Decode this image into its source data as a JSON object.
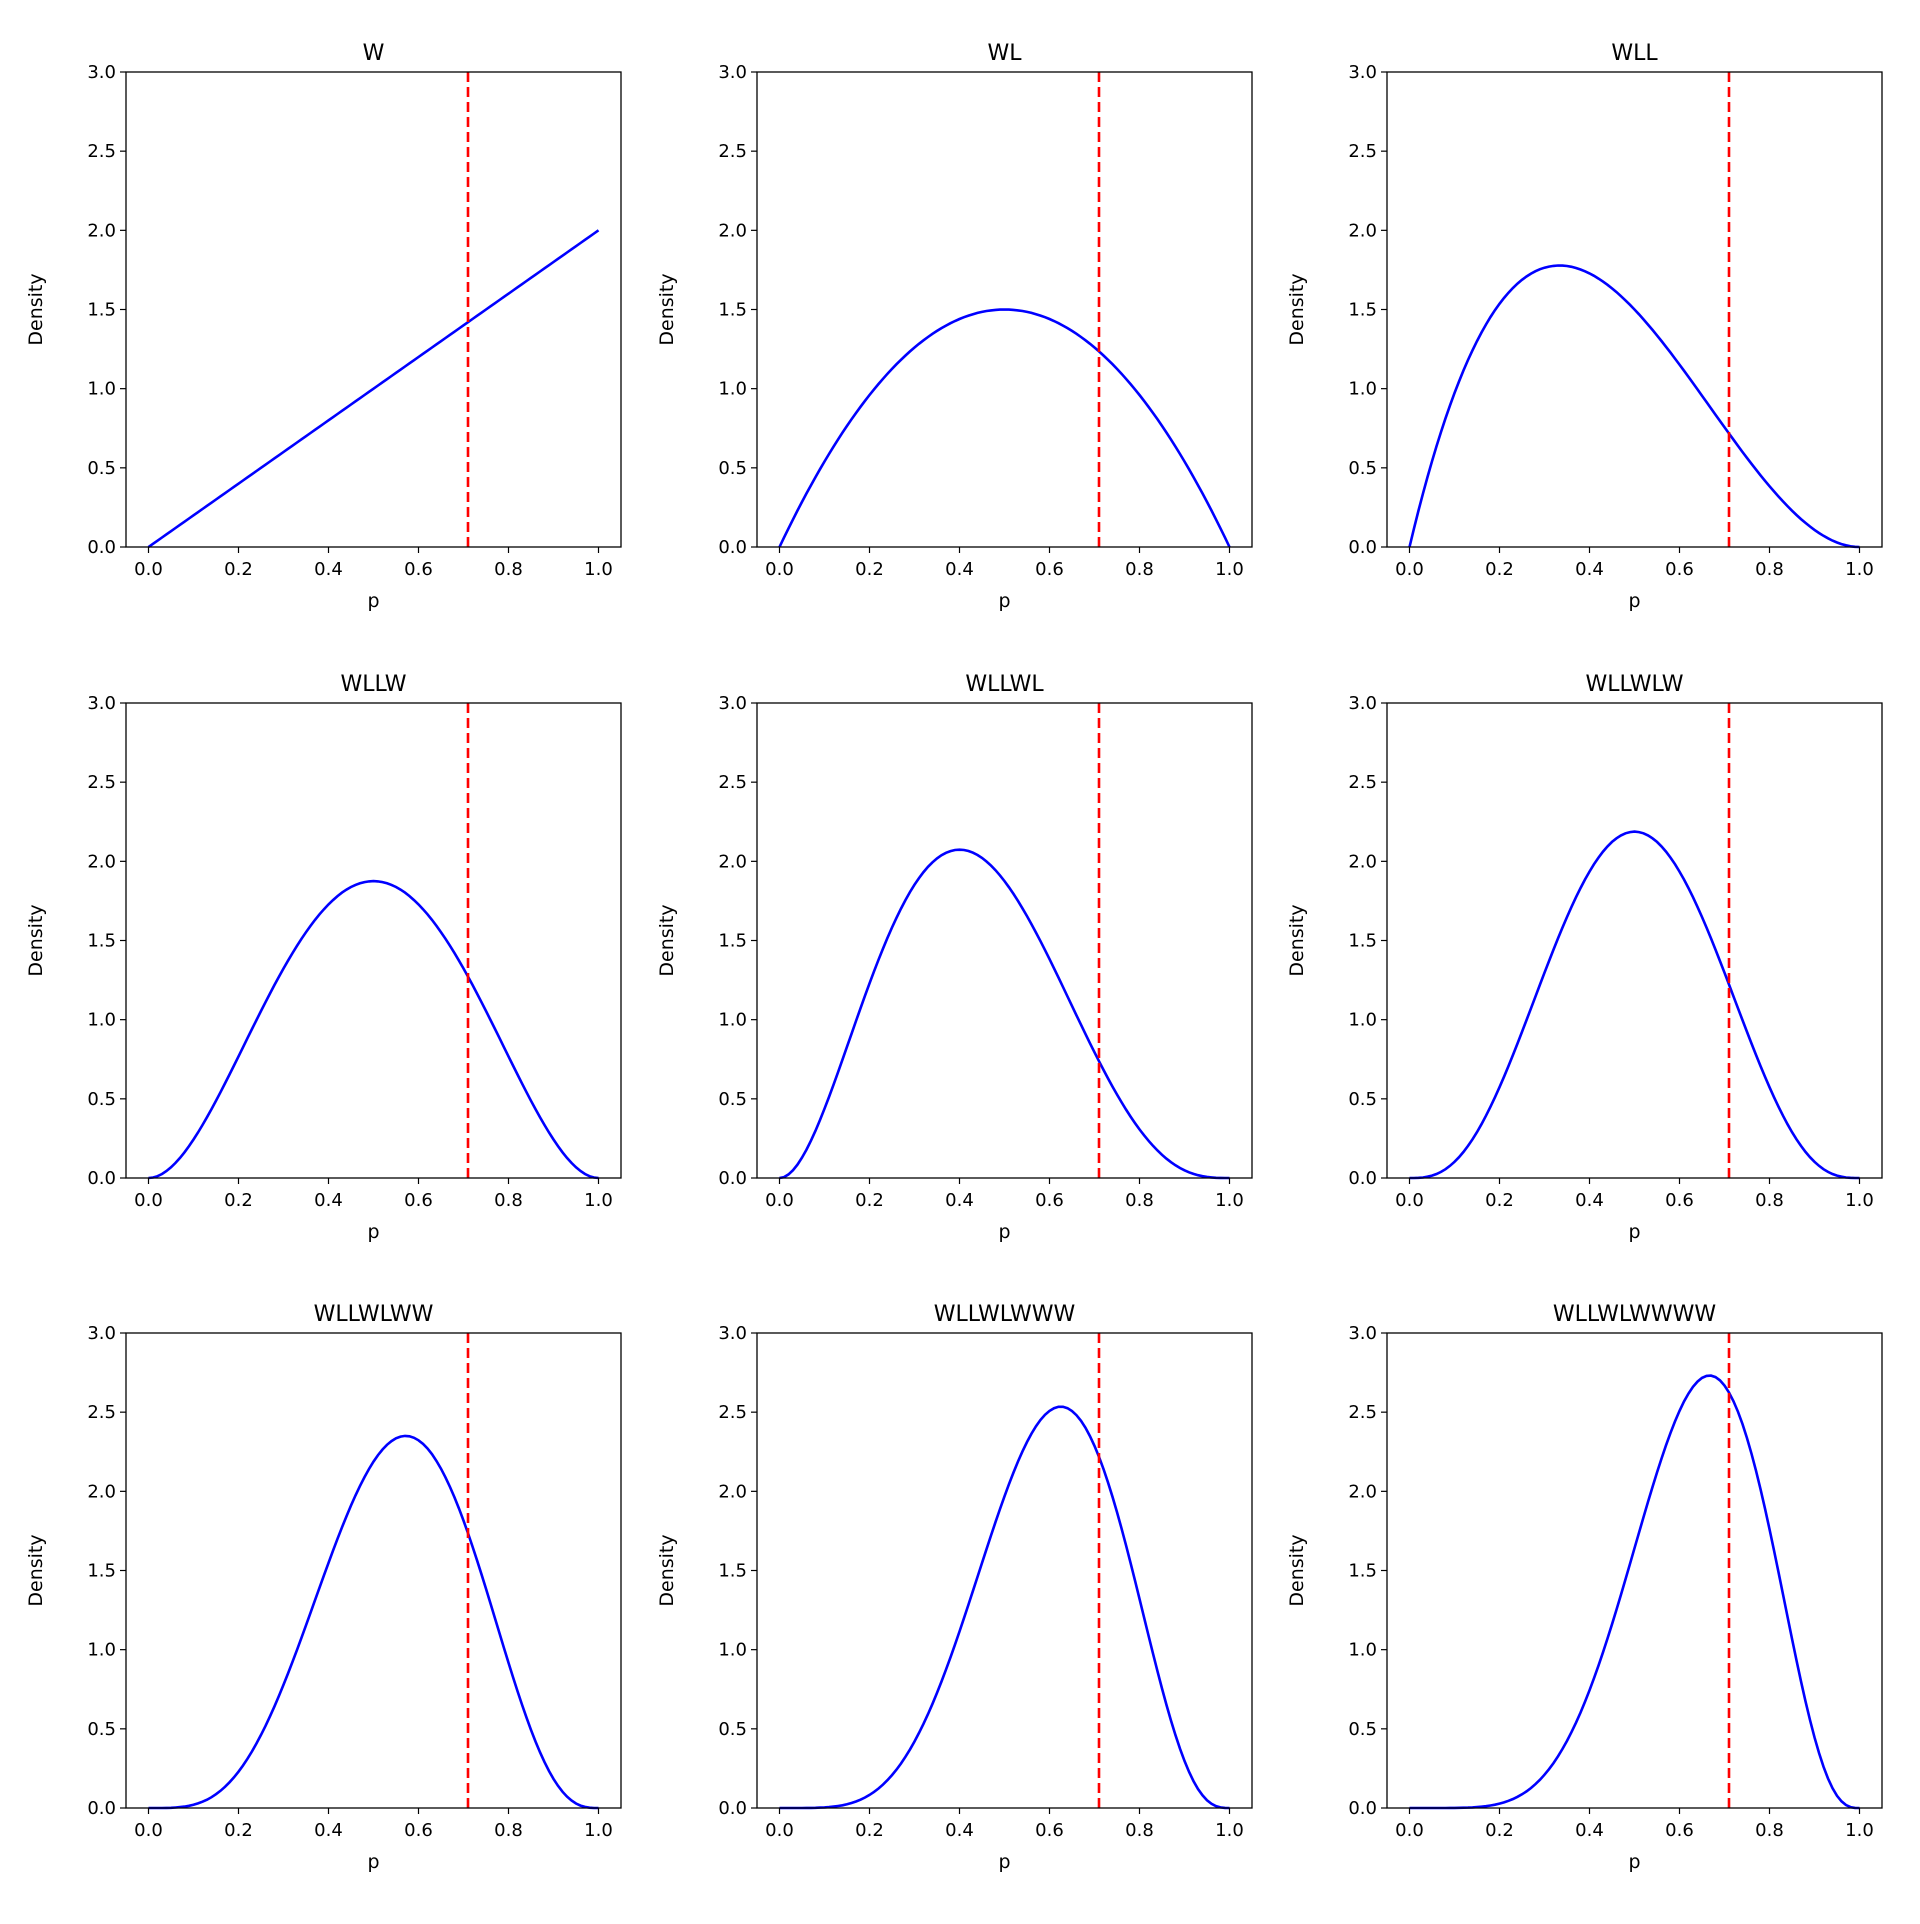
{
  "chart_data": [
    {
      "type": "line",
      "title": "W",
      "xlabel": "p",
      "ylabel": "Density",
      "distribution": "beta",
      "alpha": 2,
      "beta": 1,
      "xlim": [
        -0.05,
        1.05
      ],
      "ylim": [
        0,
        3
      ],
      "true_p": 0.71,
      "xticks": [
        "0.0",
        "0.2",
        "0.4",
        "0.6",
        "0.8",
        "1.0"
      ],
      "yticks": [
        "0.0",
        "0.5",
        "1.0",
        "1.5",
        "2.0",
        "2.5",
        "3.0"
      ],
      "line_color": "#0000ff",
      "ref_color": "#ff0000"
    },
    {
      "type": "line",
      "title": "WL",
      "xlabel": "p",
      "ylabel": "Density",
      "distribution": "beta",
      "alpha": 2,
      "beta": 2,
      "xlim": [
        -0.05,
        1.05
      ],
      "ylim": [
        0,
        3
      ],
      "true_p": 0.71,
      "xticks": [
        "0.0",
        "0.2",
        "0.4",
        "0.6",
        "0.8",
        "1.0"
      ],
      "yticks": [
        "0.0",
        "0.5",
        "1.0",
        "1.5",
        "2.0",
        "2.5",
        "3.0"
      ],
      "line_color": "#0000ff",
      "ref_color": "#ff0000"
    },
    {
      "type": "line",
      "title": "WLL",
      "xlabel": "p",
      "ylabel": "Density",
      "distribution": "beta",
      "alpha": 2,
      "beta": 3,
      "xlim": [
        -0.05,
        1.05
      ],
      "ylim": [
        0,
        3
      ],
      "true_p": 0.71,
      "xticks": [
        "0.0",
        "0.2",
        "0.4",
        "0.6",
        "0.8",
        "1.0"
      ],
      "yticks": [
        "0.0",
        "0.5",
        "1.0",
        "1.5",
        "2.0",
        "2.5",
        "3.0"
      ],
      "line_color": "#0000ff",
      "ref_color": "#ff0000"
    },
    {
      "type": "line",
      "title": "WLLW",
      "xlabel": "p",
      "ylabel": "Density",
      "distribution": "beta",
      "alpha": 3,
      "beta": 3,
      "xlim": [
        -0.05,
        1.05
      ],
      "ylim": [
        0,
        3
      ],
      "true_p": 0.71,
      "xticks": [
        "0.0",
        "0.2",
        "0.4",
        "0.6",
        "0.8",
        "1.0"
      ],
      "yticks": [
        "0.0",
        "0.5",
        "1.0",
        "1.5",
        "2.0",
        "2.5",
        "3.0"
      ],
      "line_color": "#0000ff",
      "ref_color": "#ff0000"
    },
    {
      "type": "line",
      "title": "WLLWL",
      "xlabel": "p",
      "ylabel": "Density",
      "distribution": "beta",
      "alpha": 3,
      "beta": 4,
      "xlim": [
        -0.05,
        1.05
      ],
      "ylim": [
        0,
        3
      ],
      "true_p": 0.71,
      "xticks": [
        "0.0",
        "0.2",
        "0.4",
        "0.6",
        "0.8",
        "1.0"
      ],
      "yticks": [
        "0.0",
        "0.5",
        "1.0",
        "1.5",
        "2.0",
        "2.5",
        "3.0"
      ],
      "line_color": "#0000ff",
      "ref_color": "#ff0000"
    },
    {
      "type": "line",
      "title": "WLLWLW",
      "xlabel": "p",
      "ylabel": "Density",
      "distribution": "beta",
      "alpha": 4,
      "beta": 4,
      "xlim": [
        -0.05,
        1.05
      ],
      "ylim": [
        0,
        3
      ],
      "true_p": 0.71,
      "xticks": [
        "0.0",
        "0.2",
        "0.4",
        "0.6",
        "0.8",
        "1.0"
      ],
      "yticks": [
        "0.0",
        "0.5",
        "1.0",
        "1.5",
        "2.0",
        "2.5",
        "3.0"
      ],
      "line_color": "#0000ff",
      "ref_color": "#ff0000"
    },
    {
      "type": "line",
      "title": "WLLWLWW",
      "xlabel": "p",
      "ylabel": "Density",
      "distribution": "beta",
      "alpha": 5,
      "beta": 4,
      "xlim": [
        -0.05,
        1.05
      ],
      "ylim": [
        0,
        3
      ],
      "true_p": 0.71,
      "xticks": [
        "0.0",
        "0.2",
        "0.4",
        "0.6",
        "0.8",
        "1.0"
      ],
      "yticks": [
        "0.0",
        "0.5",
        "1.0",
        "1.5",
        "2.0",
        "2.5",
        "3.0"
      ],
      "line_color": "#0000ff",
      "ref_color": "#ff0000"
    },
    {
      "type": "line",
      "title": "WLLWLWWW",
      "xlabel": "p",
      "ylabel": "Density",
      "distribution": "beta",
      "alpha": 6,
      "beta": 4,
      "xlim": [
        -0.05,
        1.05
      ],
      "ylim": [
        0,
        3
      ],
      "true_p": 0.71,
      "xticks": [
        "0.0",
        "0.2",
        "0.4",
        "0.6",
        "0.8",
        "1.0"
      ],
      "yticks": [
        "0.0",
        "0.5",
        "1.0",
        "1.5",
        "2.0",
        "2.5",
        "3.0"
      ],
      "line_color": "#0000ff",
      "ref_color": "#ff0000"
    },
    {
      "type": "line",
      "title": "WLLWLWWWW",
      "xlabel": "p",
      "ylabel": "Density",
      "distribution": "beta",
      "alpha": 7,
      "beta": 4,
      "xlim": [
        -0.05,
        1.05
      ],
      "ylim": [
        0,
        3
      ],
      "true_p": 0.71,
      "xticks": [
        "0.0",
        "0.2",
        "0.4",
        "0.6",
        "0.8",
        "1.0"
      ],
      "yticks": [
        "0.0",
        "0.5",
        "1.0",
        "1.5",
        "2.0",
        "2.5",
        "3.0"
      ],
      "line_color": "#0000ff",
      "ref_color": "#ff0000"
    }
  ]
}
